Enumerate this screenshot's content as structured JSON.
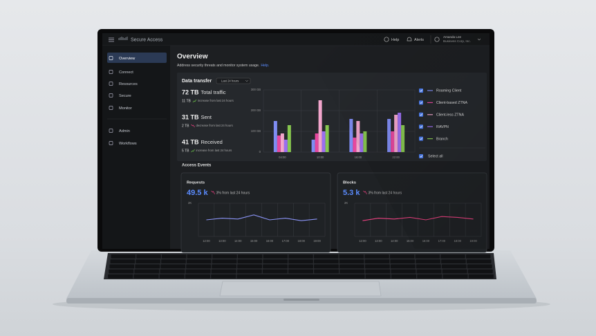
{
  "header": {
    "product": "Secure Access",
    "help": "Help",
    "alerts": "Alerts",
    "user_name": "Amanda Lee",
    "user_org": "Business Corp, Inc."
  },
  "sidebar": {
    "items": [
      "Overview",
      "Connect",
      "Resources",
      "Secure",
      "Monitor",
      "Admin",
      "Workflows"
    ]
  },
  "page": {
    "title": "Overview",
    "subtitle": "Address security threats and monitor system usage.",
    "help_link": "Help."
  },
  "data_transfer": {
    "title": "Data transfer",
    "filter": "Last 24 hours",
    "stats": [
      {
        "value": "72 TB",
        "label": "Total traffic",
        "sub_value": "11 TB",
        "sub_label": "increase from last 24 hours"
      },
      {
        "value": "31 TB",
        "label": "Sent",
        "sub_value": "2 TB",
        "sub_label": "decrease from last 24 hours"
      },
      {
        "value": "41 TB",
        "label": "Received",
        "sub_value": "5 TB",
        "sub_label": "increase from last 24 hours"
      }
    ],
    "chart": {
      "type": "bar",
      "categories": [
        "04:00",
        "10:00",
        "16:00",
        "22:00"
      ],
      "ylim": [
        0,
        300
      ],
      "yticks": [
        0,
        {
          "value": 100,
          "label": "100 GB"
        },
        {
          "value": 200,
          "label": "200 GB"
        },
        {
          "value": 300,
          "label": "300 GB"
        }
      ],
      "grid": true,
      "series": [
        {
          "name": "Roaming Client",
          "color": "#7f8cf2",
          "values": [
            150,
            60,
            160,
            160
          ]
        },
        {
          "name": "Client-based ZTNA",
          "color": "#e5479e",
          "values": [
            80,
            90,
            70,
            100
          ]
        },
        {
          "name": "Client-less ZTNA",
          "color": "#f2a5cc",
          "values": [
            90,
            250,
            150,
            180
          ]
        },
        {
          "name": "RAVPN",
          "color": "#9b6ef0",
          "values": [
            60,
            100,
            90,
            190
          ]
        },
        {
          "name": "Branch",
          "color": "#86c64e",
          "values": [
            130,
            130,
            100,
            130
          ]
        }
      ],
      "select_all": "Select all"
    }
  },
  "access_events": {
    "title": "Access Events",
    "cards": [
      {
        "title": "Requests",
        "value": "49.5 k",
        "change": "3% from last 24 hours",
        "chart": {
          "type": "line",
          "categories": [
            "12:00",
            "13:00",
            "14:00",
            "15:00",
            "16:00",
            "17:00",
            "18:00",
            "19:00"
          ],
          "ylim": [
            0,
            2000
          ],
          "yticks": [
            {
              "value": 2000,
              "label": "2K"
            }
          ],
          "color": "#8a93f5",
          "values": [
            1000,
            1100,
            1050,
            1300,
            1000,
            1100,
            950,
            1050
          ]
        }
      },
      {
        "title": "Blocks",
        "value": "5.3 k",
        "change": "3% from last 24 hours",
        "chart": {
          "type": "line",
          "categories": [
            "12:00",
            "13:00",
            "14:00",
            "15:00",
            "16:00",
            "17:00",
            "18:00",
            "19:00"
          ],
          "ylim": [
            0,
            2000
          ],
          "yticks": [
            {
              "value": 2000,
              "label": "2K"
            }
          ],
          "color": "#e8417f",
          "values": [
            950,
            1100,
            1050,
            1150,
            1000,
            1200,
            1150,
            1050
          ]
        }
      }
    ]
  }
}
